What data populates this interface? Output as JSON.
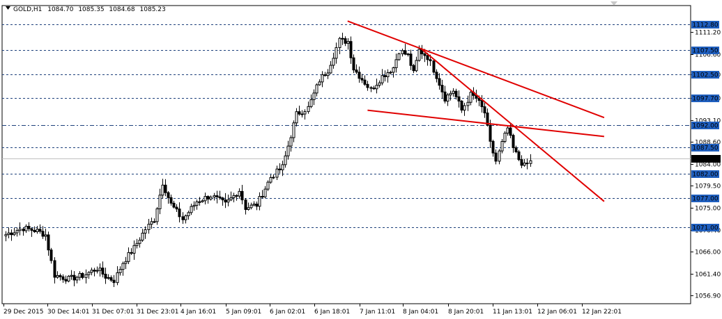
{
  "header": {
    "symbol": "GOLD,H1",
    "open": "1084.70",
    "high": "1085.35",
    "low": "1084.68",
    "close": "1085.23"
  },
  "chart_data": {
    "type": "candlestick",
    "symbol": "GOLD",
    "timeframe": "H1",
    "ylim": [
      1055.2,
      1116.7
    ],
    "y_ticks": [
      "1111.20",
      "1106.60",
      "1102.50",
      "1097.70",
      "1093.10",
      "1088.60",
      "1084.00",
      "1079.50",
      "1075.00",
      "1070.40",
      "1066.00",
      "1061.40",
      "1056.90"
    ],
    "x_ticks": [
      "29 Dec 2015",
      "30 Dec 14:01",
      "31 Dec 07:01",
      "31 Dec 23:01",
      "4 Jan 16:01",
      "5 Jan 09:01",
      "6 Jan 02:01",
      "6 Jan 18:01",
      "7 Jan 11:01",
      "8 Jan 04:01",
      "8 Jan 20:01",
      "11 Jan 13:01",
      "12 Jan 06:01",
      "12 Jan 22:01"
    ],
    "levels": [
      {
        "label": "1112.80",
        "value": 1112.8,
        "style": "dashed"
      },
      {
        "label": "1107.50",
        "value": 1107.5,
        "style": "dashed"
      },
      {
        "label": "1102.50",
        "value": 1102.5,
        "style": "dashed"
      },
      {
        "label": "1097.70",
        "value": 1097.7,
        "style": "dashed"
      },
      {
        "label": "1092.00",
        "value": 1092.0,
        "style": "dashdot"
      },
      {
        "label": "1087.50",
        "value": 1087.5,
        "style": "dashed"
      },
      {
        "label": "1082.00",
        "value": 1082.0,
        "style": "dashed"
      },
      {
        "label": "1077.00",
        "value": 1077.0,
        "style": "dashed"
      },
      {
        "label": "1071.00",
        "value": 1071.0,
        "style": "dashed"
      }
    ],
    "current_price": {
      "label": "1085.23",
      "value": 1085.23
    },
    "trendlines": [
      {
        "from": {
          "bar": 120,
          "price": 1113.5
        },
        "to": {
          "bar": 210,
          "price": 1093.6
        }
      },
      {
        "from": {
          "bar": 146,
          "price": 1107.7
        },
        "to": {
          "bar": 210,
          "price": 1076.3
        }
      },
      {
        "from": {
          "bar": 127,
          "price": 1095.1
        },
        "to": {
          "bar": 210,
          "price": 1089.7
        }
      }
    ],
    "anchors": [
      [
        0,
        1069.5
      ],
      [
        6,
        1070.8
      ],
      [
        11,
        1070.2
      ],
      [
        14,
        1069.4
      ],
      [
        17,
        1061.1
      ],
      [
        22,
        1060.3
      ],
      [
        27,
        1061.0
      ],
      [
        32,
        1062.5
      ],
      [
        35,
        1060.8
      ],
      [
        38,
        1060.0
      ],
      [
        41,
        1063.7
      ],
      [
        45,
        1066.7
      ],
      [
        49,
        1070.6
      ],
      [
        52,
        1072.6
      ],
      [
        55,
        1080.2
      ],
      [
        58,
        1075.7
      ],
      [
        62,
        1072.6
      ],
      [
        67,
        1076.3
      ],
      [
        72,
        1077.5
      ],
      [
        77,
        1075.7
      ],
      [
        82,
        1078.6
      ],
      [
        84,
        1075.0
      ],
      [
        88,
        1075.6
      ],
      [
        93,
        1081.3
      ],
      [
        97,
        1083.4
      ],
      [
        102,
        1094.3
      ],
      [
        106,
        1095.6
      ],
      [
        110,
        1101.3
      ],
      [
        113,
        1103.4
      ],
      [
        117,
        1109.5
      ],
      [
        120,
        1109.3
      ],
      [
        122,
        1103.7
      ],
      [
        126,
        1100.8
      ],
      [
        128,
        1099.3
      ],
      [
        132,
        1102.1
      ],
      [
        136,
        1103.9
      ],
      [
        138,
        1107.4
      ],
      [
        141,
        1106.4
      ],
      [
        143,
        1102.7
      ],
      [
        145,
        1107.5
      ],
      [
        148,
        1106.1
      ],
      [
        151,
        1102.2
      ],
      [
        154,
        1097.6
      ],
      [
        157,
        1099.2
      ],
      [
        160,
        1095.1
      ],
      [
        163,
        1098.3
      ],
      [
        165,
        1097.6
      ],
      [
        168,
        1094.6
      ],
      [
        170,
        1088.2
      ],
      [
        172,
        1084.6
      ],
      [
        174,
        1088.3
      ],
      [
        176,
        1091.4
      ],
      [
        178,
        1087.2
      ],
      [
        180,
        1085.0
      ],
      [
        182,
        1083.6
      ],
      [
        184,
        1084.5
      ]
    ]
  }
}
